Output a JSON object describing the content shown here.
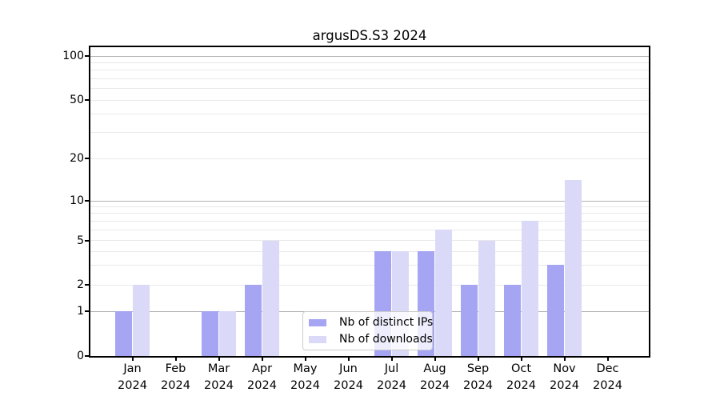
{
  "title": "argusDS.S3 2024",
  "chart_data": {
    "type": "bar",
    "title": "argusDS.S3 2024",
    "x_categories": [
      {
        "month": "Jan",
        "year": "2024"
      },
      {
        "month": "Feb",
        "year": "2024"
      },
      {
        "month": "Mar",
        "year": "2024"
      },
      {
        "month": "Apr",
        "year": "2024"
      },
      {
        "month": "May",
        "year": "2024"
      },
      {
        "month": "Jun",
        "year": "2024"
      },
      {
        "month": "Jul",
        "year": "2024"
      },
      {
        "month": "Aug",
        "year": "2024"
      },
      {
        "month": "Sep",
        "year": "2024"
      },
      {
        "month": "Oct",
        "year": "2024"
      },
      {
        "month": "Nov",
        "year": "2024"
      },
      {
        "month": "Dec",
        "year": "2024"
      }
    ],
    "series": [
      {
        "name": "Nb of distinct IPs",
        "color": "#a5a5f4",
        "values": [
          1,
          0,
          1,
          2,
          0,
          0,
          4,
          4,
          2,
          2,
          3,
          0
        ]
      },
      {
        "name": "Nb of downloads",
        "color": "#dadaf8",
        "values": [
          2,
          0,
          1,
          5,
          0,
          0,
          4,
          6,
          5,
          7,
          14,
          0
        ]
      }
    ],
    "y_scale": "symlog",
    "y_ticks": [
      0,
      1,
      2,
      5,
      10,
      20,
      50,
      100
    ],
    "y_major_gridlines": [
      1,
      10,
      100
    ],
    "y_minor_gridlines": [
      2,
      3,
      4,
      5,
      6,
      7,
      8,
      9,
      20,
      30,
      40,
      50,
      60,
      70,
      80,
      90
    ],
    "ylim": [
      0,
      120
    ],
    "legend_position": "lower center",
    "grid": "on",
    "colors": {
      "major_grid": "#b2b2b2",
      "minor_grid": "#e9e9e9",
      "axis": "#000000",
      "background": "#ffffff"
    }
  }
}
